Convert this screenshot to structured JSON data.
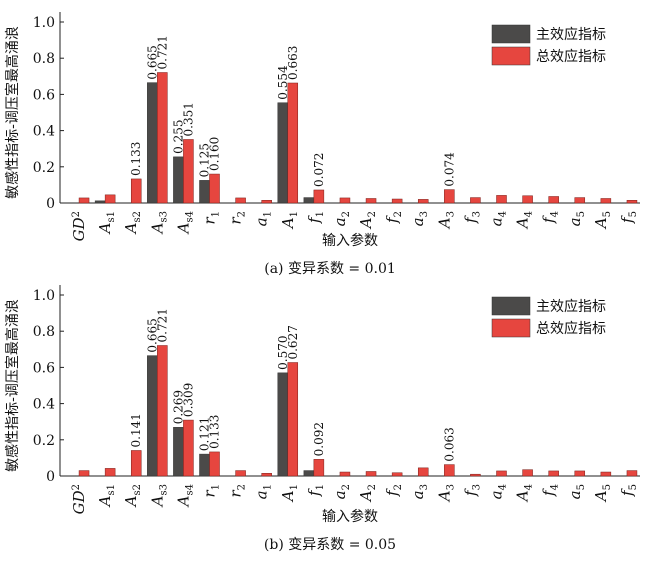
{
  "colors": {
    "main": "#4b4a49",
    "total": "#e6463f",
    "axis": "#222222"
  },
  "chart_data": [
    {
      "type": "bar",
      "caption": "(a)  变异系数 = 0.01",
      "ylabel": "敏感性指标-调压室最高涌浪",
      "xlabel": "输入参数",
      "ylim": [
        0,
        1.0
      ],
      "yticks": [
        "0",
        "0.2",
        "0.4",
        "0.6",
        "0.8",
        "1.0"
      ],
      "legend_position": "top-right",
      "categories": [
        "GD²",
        "A_s1",
        "A_s2",
        "A_s3",
        "A_s4",
        "r_1",
        "r_2",
        "a_1",
        "A_1",
        "f_1",
        "a_2",
        "A_2",
        "f_2",
        "a_3",
        "A_3",
        "f_3",
        "a_4",
        "A_4",
        "f_4",
        "a_5",
        "A_5",
        "f_5"
      ],
      "series": [
        {
          "name": "主效应指标",
          "values": [
            0.0,
            0.012,
            0.0,
            0.665,
            0.255,
            0.125,
            0.0,
            0.0,
            0.554,
            0.03,
            0.0,
            0.0,
            0.0,
            0.0,
            0.0,
            0.0,
            0.0,
            0.0,
            0.0,
            0.0,
            0.0,
            0.0
          ]
        },
        {
          "name": "总效应指标",
          "values": [
            0.028,
            0.045,
            0.133,
            0.721,
            0.351,
            0.16,
            0.028,
            0.015,
            0.663,
            0.072,
            0.028,
            0.025,
            0.022,
            0.02,
            0.074,
            0.03,
            0.042,
            0.04,
            0.036,
            0.03,
            0.025,
            0.015
          ]
        }
      ],
      "value_labels": [
        {
          "index": 3,
          "series": 0,
          "text": "0.665"
        },
        {
          "index": 3,
          "series": 1,
          "text": "0.721"
        },
        {
          "index": 2,
          "series": 1,
          "text": "0.133"
        },
        {
          "index": 4,
          "series": 0,
          "text": "0.255"
        },
        {
          "index": 4,
          "series": 1,
          "text": "0.351"
        },
        {
          "index": 5,
          "series": 0,
          "text": "0.125"
        },
        {
          "index": 5,
          "series": 1,
          "text": "0.160"
        },
        {
          "index": 8,
          "series": 0,
          "text": "0.554"
        },
        {
          "index": 8,
          "series": 1,
          "text": "0.663"
        },
        {
          "index": 9,
          "series": 1,
          "text": "0.072"
        },
        {
          "index": 14,
          "series": 1,
          "text": "0.074"
        }
      ]
    },
    {
      "type": "bar",
      "caption": "(b)  变异系数 = 0.05",
      "ylabel": "敏感性指标-调压室最高涌浪",
      "xlabel": "输入参数",
      "ylim": [
        0,
        1.0
      ],
      "yticks": [
        "0",
        "0.2",
        "0.4",
        "0.6",
        "0.8",
        "1.0"
      ],
      "legend_position": "top-right",
      "categories": [
        "GD²",
        "A_s1",
        "A_s2",
        "A_s3",
        "A_s4",
        "r_1",
        "r_2",
        "a_1",
        "A_1",
        "f_1",
        "a_2",
        "A_2",
        "f_2",
        "a_3",
        "A_3",
        "f_3",
        "a_4",
        "A_4",
        "f_4",
        "a_5",
        "A_5",
        "f_5"
      ],
      "series": [
        {
          "name": "主效应指标",
          "values": [
            0.0,
            0.0,
            0.0,
            0.665,
            0.269,
            0.121,
            0.0,
            0.0,
            0.57,
            0.03,
            0.0,
            0.0,
            0.0,
            0.0,
            0.0,
            0.0,
            0.0,
            0.0,
            0.0,
            0.0,
            0.0,
            0.0
          ]
        },
        {
          "name": "总效应指标",
          "values": [
            0.03,
            0.042,
            0.141,
            0.721,
            0.309,
            0.133,
            0.03,
            0.015,
            0.627,
            0.092,
            0.022,
            0.025,
            0.018,
            0.045,
            0.063,
            0.01,
            0.028,
            0.035,
            0.028,
            0.028,
            0.022,
            0.03
          ]
        }
      ],
      "value_labels": [
        {
          "index": 3,
          "series": 0,
          "text": "0.665"
        },
        {
          "index": 3,
          "series": 1,
          "text": "0.721"
        },
        {
          "index": 2,
          "series": 1,
          "text": "0.141"
        },
        {
          "index": 4,
          "series": 0,
          "text": "0.269"
        },
        {
          "index": 4,
          "series": 1,
          "text": "0.309"
        },
        {
          "index": 5,
          "series": 0,
          "text": "0.121"
        },
        {
          "index": 5,
          "series": 1,
          "text": "0.133"
        },
        {
          "index": 8,
          "series": 0,
          "text": "0.570"
        },
        {
          "index": 8,
          "series": 1,
          "text": "0.627"
        },
        {
          "index": 9,
          "series": 1,
          "text": "0.092"
        },
        {
          "index": 14,
          "series": 1,
          "text": "0.063"
        }
      ]
    }
  ]
}
